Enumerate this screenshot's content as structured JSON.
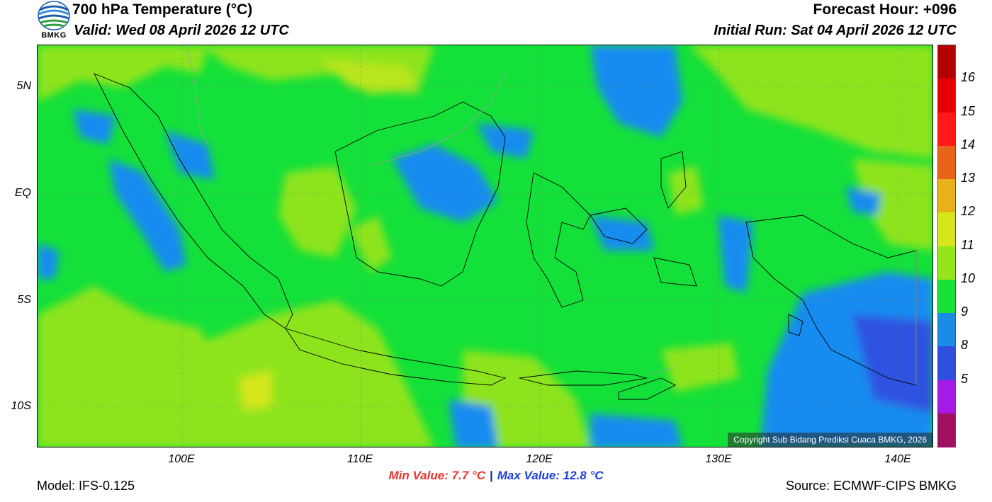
{
  "header": {
    "title": "700 hPa Temperature (°C)",
    "valid": "Valid: Wed 08 April 2026 12 UTC",
    "forecast_hour": "Forecast Hour: +096",
    "initial_run": "Initial Run: Sat 04 April 2026 12 UTC",
    "logo_text": "BMKG"
  },
  "map": {
    "lat_labels": [
      "5N",
      "EQ",
      "5S",
      "10S"
    ],
    "lon_labels": [
      "100E",
      "110E",
      "120E",
      "130E",
      "140E"
    ],
    "copyright": "Copyright Sub Bidang Prediksi Cuaca BMKG, 2026"
  },
  "colorbar": {
    "labels": [
      "16",
      "15",
      "14",
      "13",
      "12",
      "11",
      "10",
      "9",
      "8",
      "5"
    ],
    "colors": [
      "#b30000",
      "#e60000",
      "#ff1a1a",
      "#e8641a",
      "#e8b01a",
      "#d6e61a",
      "#94e61a",
      "#1ae03a",
      "#1a8ce6",
      "#2f4fe0",
      "#a61ae6",
      "#a01060"
    ]
  },
  "field_colors": {
    "green": "#14e03a",
    "yellow_green": "#8ee41a",
    "blue": "#168cf0",
    "dark_blue": "#2d52e0"
  },
  "footer": {
    "min_value": "Min Value: 7.7 °C",
    "separator": "|",
    "max_value": "Max Value: 12.8 °C",
    "model": "Model: IFS-0.125",
    "source": "Source: ECMWF-CIPS BMKG"
  }
}
